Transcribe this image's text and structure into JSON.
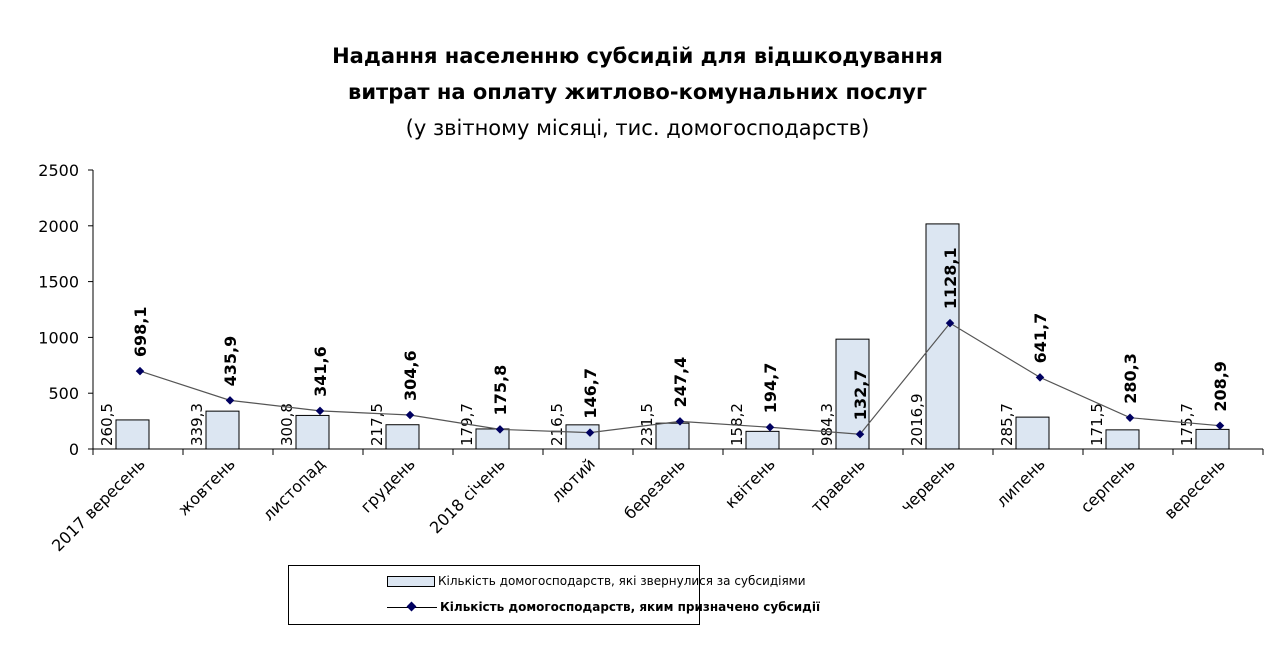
{
  "chart_data": {
    "type": "bar+line",
    "title": [
      "Надання населенню субсидій для відшкодування",
      "витрат на оплату житлово-комунальних послуг"
    ],
    "subtitle": "(у звітному місяці, тис. домогосподарств)",
    "categories": [
      "2017 вересень",
      "жовтень",
      "листопад",
      "грудень",
      "2018 січень",
      "лютий",
      "березень",
      "квітень",
      "травень",
      "червень",
      "липень",
      "серпень",
      "вересень"
    ],
    "ylim": [
      0,
      2500
    ],
    "yticks": [
      0,
      500,
      1000,
      1500,
      2000,
      2500
    ],
    "grid": false,
    "legend_position": "bottom",
    "series": [
      {
        "name": "Кількість домогосподарств,  які звернулися за субсидіями",
        "type": "bar",
        "color": "#dce6f2",
        "values": [
          260.5,
          339.3,
          300.8,
          217.5,
          179.7,
          216.5,
          231.5,
          158.2,
          984.3,
          2016.9,
          285.7,
          171.5,
          175.7
        ],
        "labels": [
          "260,5",
          "339,3",
          "300,8",
          "217,5",
          "179,7",
          "216,5",
          "231,5",
          "158,2",
          "984,3",
          "2016,9",
          "285,7",
          "171,5",
          "175,7"
        ]
      },
      {
        "name": "Кількість  домогосподарств, яким призначено субсидії",
        "type": "line",
        "color": "#000060",
        "values": [
          698.1,
          435.9,
          341.6,
          304.6,
          175.8,
          146.7,
          247.4,
          194.7,
          132.7,
          1128.1,
          641.7,
          280.3,
          208.9
        ],
        "labels": [
          "698,1",
          "435,9",
          "341,6",
          "304,6",
          "175,8",
          "146,7",
          "247,4",
          "194,7",
          "132,7",
          "1128,1",
          "641,7",
          "280,3",
          "208,9"
        ]
      }
    ]
  }
}
